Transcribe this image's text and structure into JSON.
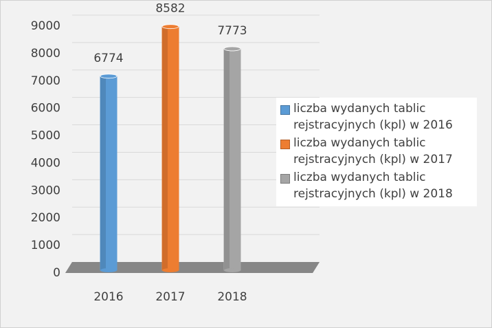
{
  "chart_data": {
    "type": "bar",
    "categories": [
      "2016",
      "2017",
      "2018"
    ],
    "series": [
      {
        "name": "liczba wydanych tablic rejstracyjnych (kpl) w 2016",
        "color": "#5b9bd5",
        "values": [
          6774,
          null,
          null
        ]
      },
      {
        "name": "liczba wydanych tablic rejstracyjnych (kpl) w 2017",
        "color": "#ed7d31",
        "values": [
          null,
          8582,
          null
        ]
      },
      {
        "name": "liczba wydanych tablic rejstracyjnych (kpl) w 2018",
        "color": "#a5a5a5",
        "values": [
          null,
          null,
          7773
        ]
      }
    ],
    "ylim": [
      0,
      9000
    ],
    "yticks": [
      0,
      1000,
      2000,
      3000,
      4000,
      5000,
      6000,
      7000,
      8000,
      9000
    ],
    "grid": true,
    "legend": "right"
  }
}
